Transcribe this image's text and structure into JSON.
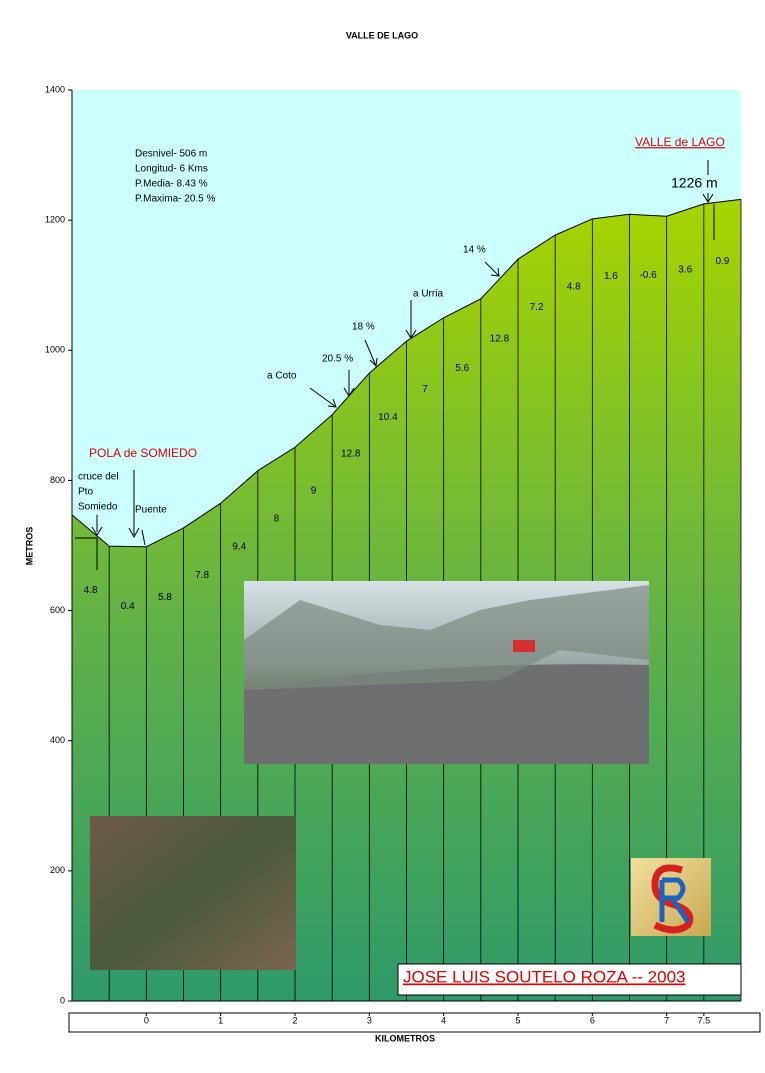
{
  "chart_data": {
    "type": "area",
    "title": "VALLE DE LAGO",
    "y_label": "METROS",
    "x_label": "KILOMETROS",
    "x": [
      -1,
      -0.5,
      0,
      0.5,
      1,
      1.5,
      2,
      2.5,
      3,
      3.5,
      4,
      4.5,
      5,
      5.5,
      6,
      6.5,
      7,
      7.5,
      8
    ],
    "values": [
      747,
      699,
      698,
      727,
      765,
      815,
      851,
      901,
      965,
      1014,
      1050,
      1079,
      1140,
      1177,
      1202,
      1209,
      1206,
      1225,
      1232
    ],
    "segment_labels": [
      4.8,
      0.4,
      5.8,
      7.8,
      9.4,
      8,
      9,
      12.8,
      10.4,
      7,
      5.6,
      12.8,
      7.2,
      4.8,
      1.6,
      -0.6,
      3.6,
      0.9
    ],
    "xlim": [
      -1,
      8
    ],
    "xticks": [
      0,
      1,
      2,
      3,
      4,
      5,
      6,
      7,
      7.5
    ],
    "ylim": [
      0,
      1400
    ],
    "yticks": [
      0,
      200,
      400,
      600,
      800,
      1000,
      1200,
      1400
    ],
    "stats": [
      "Desnivel- 506  m",
      "Longitud- 6 Kms",
      "P.Media- 8.43 %",
      "P.Maxima- 20.5 %"
    ],
    "annotations": [
      "POLA de SOMIEDO",
      "cruce del",
      "Pto",
      "Somiedo",
      "Puente",
      "a Coto",
      "20.5 %",
      "18 %",
      "a Urria",
      "14 %",
      "VALLE de LAGO",
      "1226 m"
    ],
    "author": "JOSE LUIS SOUTELO ROZA -- 2003",
    "background_color": "#ccffff",
    "line_color": "#000000"
  }
}
